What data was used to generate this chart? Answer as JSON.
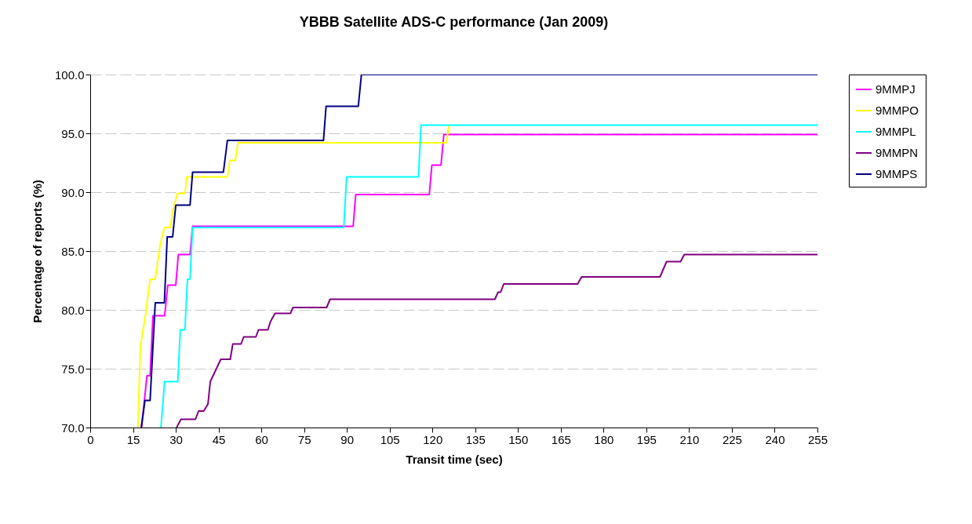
{
  "chart_data": {
    "type": "line",
    "title": "YBBB Satellite ADS-C performance (Jan 2009)",
    "xlabel": "Transit time (sec)",
    "ylabel": "Percentage of reports (%)",
    "xlim": [
      0,
      255
    ],
    "xticks": [
      0,
      15,
      30,
      45,
      60,
      75,
      90,
      105,
      120,
      135,
      150,
      165,
      180,
      195,
      210,
      225,
      240,
      255
    ],
    "ylim": [
      70,
      100
    ],
    "yticks": [
      {
        "value": 70,
        "label": "70.0"
      },
      {
        "value": 75,
        "label": "75.0"
      },
      {
        "value": 80,
        "label": "80.0"
      },
      {
        "value": 85,
        "label": "85.0"
      },
      {
        "value": 90,
        "label": "90.0"
      },
      {
        "value": 95,
        "label": "95.0"
      },
      {
        "value": 100,
        "label": "100.0"
      }
    ],
    "grid": "y",
    "legend": "right",
    "marker": "none",
    "line_style": "solid",
    "series": [
      {
        "name": "9MMPJ",
        "color": "#ff00ff",
        "x": [
          18.0,
          19.9,
          21.0,
          22.0,
          26.1,
          27.2,
          30.0,
          30.9,
          35.0,
          35.9,
          92.2,
          93.1,
          118.9,
          119.8,
          123.0,
          124.0,
          255
        ],
        "values": [
          70,
          74.4,
          74.4,
          79.5,
          79.5,
          82.1,
          82.1,
          84.7,
          84.7,
          87.1,
          87.1,
          89.8,
          89.8,
          92.3,
          92.3,
          94.9,
          94.9
        ]
      },
      {
        "name": "9MMPO",
        "color": "#ffff00",
        "x": [
          16.7,
          17.6,
          19.4,
          21.0,
          22.8,
          24.5,
          26.0,
          28.1,
          28.9,
          30.6,
          33.2,
          33.9,
          48.1,
          49.0,
          50.9,
          51.8,
          124.9,
          125.8
        ],
        "values": [
          70,
          76.9,
          79.6,
          82.6,
          82.6,
          85.5,
          87.0,
          87.0,
          88.4,
          89.9,
          89.9,
          91.3,
          91.3,
          92.7,
          92.7,
          94.2,
          94.2,
          95.7
        ]
      },
      {
        "name": "9MMPL",
        "color": "#00ffff",
        "x": [
          24.8,
          26.1,
          30.7,
          31.6,
          33.2,
          34.1,
          35.0,
          35.9,
          88.9,
          89.9,
          115.1,
          116.0,
          255
        ],
        "values": [
          70,
          73.9,
          73.9,
          78.3,
          78.3,
          82.6,
          82.6,
          87.0,
          87.0,
          91.3,
          91.3,
          95.7,
          95.7
        ]
      },
      {
        "name": "9MMPN",
        "color": "#800080",
        "x": [
          30.3,
          31.8,
          36.9,
          38.0,
          39.8,
          41.3,
          42.1,
          45.8,
          49.1,
          50.0,
          52.9,
          53.8,
          58.1,
          59.0,
          62.3,
          63.2,
          64.8,
          70.2,
          71.1,
          82.9,
          84.1,
          141.9,
          143.0,
          143.9,
          145.0,
          170.9,
          172.3,
          199.8,
          202.1,
          207.0,
          208.3,
          255
        ],
        "values": [
          70,
          70.7,
          70.7,
          71.4,
          71.4,
          72.0,
          73.9,
          75.8,
          75.8,
          77.1,
          77.1,
          77.7,
          77.7,
          78.3,
          78.3,
          79.0,
          79.7,
          79.7,
          80.2,
          80.2,
          80.9,
          80.9,
          81.5,
          81.5,
          82.2,
          82.2,
          82.8,
          82.8,
          84.1,
          84.1,
          84.7,
          84.7
        ]
      },
      {
        "name": "9MMPS",
        "color": "#000080",
        "x": [
          17.9,
          19.2,
          21.0,
          22.8,
          26.0,
          27.0,
          28.9,
          30.0,
          35.0,
          35.9,
          46.7,
          48.1,
          81.8,
          82.7,
          94.0,
          95.1,
          255
        ],
        "values": [
          70,
          72.3,
          72.3,
          80.6,
          80.6,
          86.2,
          86.2,
          88.9,
          88.9,
          91.7,
          91.7,
          94.4,
          94.4,
          97.3,
          97.3,
          100,
          100
        ]
      }
    ]
  }
}
